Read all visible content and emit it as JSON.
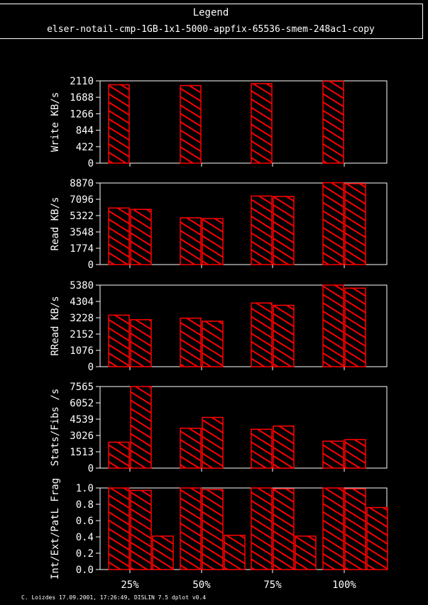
{
  "legend": {
    "title": "Legend",
    "entry": "elser-notail-cmp-1GB-1x1-5000-appfix-65536-smem-248ac1-copy"
  },
  "footer": "C. Loizdes 17.09.2001, 17:26:49, DISLIN 7.5 dplot v0.4",
  "colors": {
    "background": "#000000",
    "bars": "#ff0000",
    "axes": "#ffffff"
  },
  "chart_data": [
    {
      "type": "bar",
      "ylabel": "Write KB/s",
      "categories": [
        "25%",
        "50%",
        "75%",
        "100%"
      ],
      "yticks": [
        "0",
        "422",
        "844",
        "1266",
        "1688",
        "2110"
      ],
      "ylim": [
        0,
        2110
      ],
      "series": [
        {
          "values": [
            2010,
            1990,
            2040,
            2100
          ]
        }
      ]
    },
    {
      "type": "bar",
      "ylabel": "Read KB/s",
      "categories": [
        "25%",
        "50%",
        "75%",
        "100%"
      ],
      "yticks": [
        "0",
        "1774",
        "3548",
        "5322",
        "7096",
        "8870"
      ],
      "ylim": [
        0,
        8870
      ],
      "series": [
        {
          "values": [
            6150,
            5080,
            7450,
            8900
          ]
        },
        {
          "values": [
            6000,
            5000,
            7400,
            8800
          ]
        }
      ]
    },
    {
      "type": "bar",
      "ylabel": "RRead KB/s",
      "categories": [
        "25%",
        "50%",
        "75%",
        "100%"
      ],
      "yticks": [
        "0",
        "1076",
        "2152",
        "3228",
        "4304",
        "5380"
      ],
      "ylim": [
        0,
        5380
      ],
      "series": [
        {
          "values": [
            3400,
            3200,
            4200,
            5380
          ]
        },
        {
          "values": [
            3100,
            3000,
            4050,
            5180
          ]
        }
      ]
    },
    {
      "type": "bar",
      "ylabel": "Stats/Fibs /s",
      "categories": [
        "25%",
        "50%",
        "75%",
        "100%"
      ],
      "yticks": [
        "0",
        "1513",
        "3026",
        "4539",
        "6052",
        "7565"
      ],
      "ylim": [
        0,
        7565
      ],
      "series": [
        {
          "values": [
            2400,
            3700,
            3600,
            2500
          ]
        },
        {
          "values": [
            7565,
            4700,
            3900,
            2650
          ]
        }
      ]
    },
    {
      "type": "bar",
      "ylabel": "Int/Ext/PatL Frag",
      "categories": [
        "25%",
        "50%",
        "75%",
        "100%"
      ],
      "yticks": [
        "0.0",
        "0.2",
        "0.4",
        "0.6",
        "0.8",
        "1.0"
      ],
      "ylim": [
        0,
        1.0
      ],
      "series": [
        {
          "values": [
            1.0,
            1.0,
            1.0,
            1.0
          ]
        },
        {
          "values": [
            0.97,
            0.98,
            0.99,
            0.99
          ]
        },
        {
          "values": [
            0.41,
            0.42,
            0.41,
            0.76
          ]
        }
      ]
    }
  ]
}
